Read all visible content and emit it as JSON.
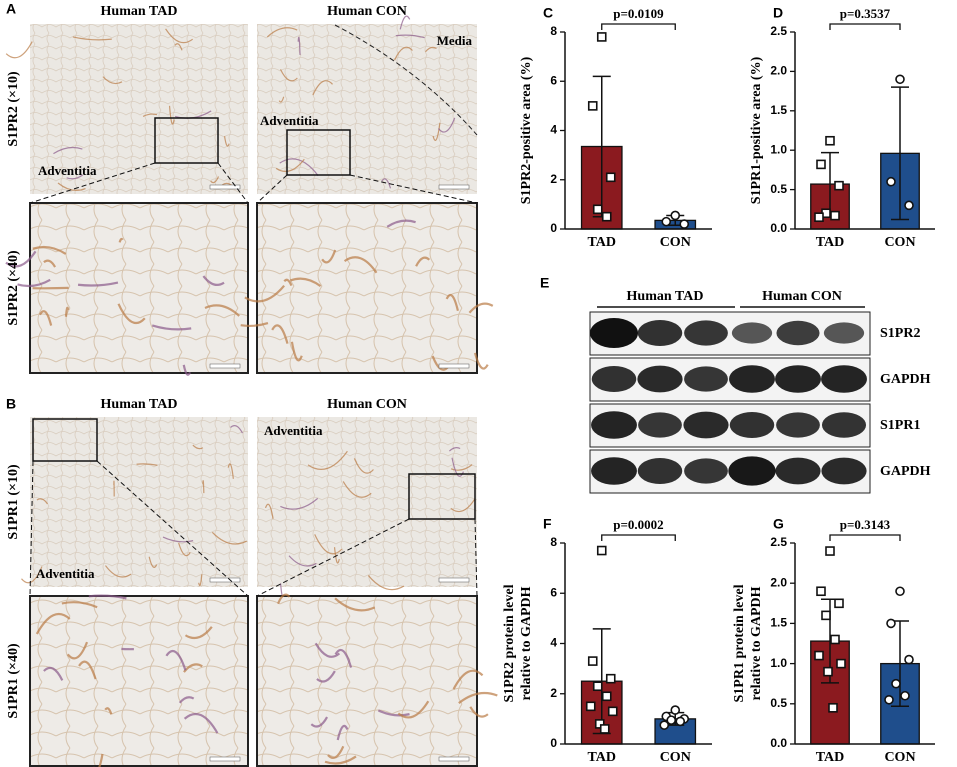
{
  "panels": {
    "a": "A",
    "b": "B",
    "e": "E"
  },
  "micrographs": {
    "a": {
      "columns": [
        "Human TAD",
        "Human CON"
      ],
      "rows": [
        "S1PR2 (×10)",
        "S1PR2 (×40)"
      ],
      "annotations": [
        "Adventitia",
        "Media",
        "Adventitia"
      ]
    },
    "b": {
      "columns": [
        "Human TAD",
        "Human CON"
      ],
      "rows": [
        "S1PR1 (×10)",
        "S1PR1 (×40)"
      ],
      "annotations": [
        "Adventitia",
        "Adventitia"
      ]
    }
  },
  "blot": {
    "groups": [
      "Human TAD",
      "Human CON"
    ],
    "rows": [
      "S1PR2",
      "GAPDH",
      "S1PR1",
      "GAPDH"
    ]
  },
  "chart_data": [
    {
      "type": "bar",
      "label": "C",
      "ylabel": [
        "S1PR2-positive area (%)"
      ],
      "categories": [
        "TAD",
        "CON"
      ],
      "values": [
        3.35,
        0.35
      ],
      "errors": [
        2.85,
        0.2
      ],
      "colors": [
        "#8b1a1f",
        "#1f4e8c"
      ],
      "markers": [
        "square",
        "circle"
      ],
      "points": [
        [
          7.8,
          5.0,
          2.1,
          0.8,
          0.5
        ],
        [
          0.55,
          0.3,
          0.2
        ]
      ],
      "ylim": [
        0,
        8
      ],
      "yticks": [
        0,
        2,
        4,
        6,
        8
      ],
      "annotation": "p=0.0109"
    },
    {
      "type": "bar",
      "label": "D",
      "ylabel": [
        "S1PR1-positive area (%)"
      ],
      "categories": [
        "TAD",
        "CON"
      ],
      "values": [
        0.57,
        0.96
      ],
      "errors": [
        0.4,
        0.84
      ],
      "colors": [
        "#8b1a1f",
        "#1f4e8c"
      ],
      "markers": [
        "square",
        "circle"
      ],
      "points": [
        [
          1.12,
          0.82,
          0.55,
          0.2,
          0.17,
          0.15
        ],
        [
          1.9,
          0.6,
          0.3
        ]
      ],
      "ylim": [
        0,
        2.5
      ],
      "yticks": [
        {
          "value": 0,
          "label": "0.0"
        },
        0.5,
        {
          "value": 1,
          "label": "1.0"
        },
        1.5,
        {
          "value": 2,
          "label": "2.0"
        },
        2.5
      ],
      "annotation": "p=0.3537"
    },
    {
      "type": "bar",
      "label": "F",
      "ylabel": [
        "S1PR2 protein level",
        "relative to GAPDH"
      ],
      "categories": [
        "TAD",
        "CON"
      ],
      "values": [
        2.5,
        1.0
      ],
      "errors": [
        2.08,
        0.25
      ],
      "colors": [
        "#8b1a1f",
        "#1f4e8c"
      ],
      "markers": [
        "square",
        "circle"
      ],
      "points": [
        [
          7.7,
          3.3,
          2.6,
          2.3,
          1.9,
          1.5,
          1.3,
          0.8,
          0.6
        ],
        [
          1.35,
          1.1,
          1.0,
          0.95,
          0.9,
          0.75
        ]
      ],
      "ylim": [
        0,
        8
      ],
      "yticks": [
        0,
        2,
        4,
        6,
        8
      ],
      "annotation": "p=0.0002"
    },
    {
      "type": "bar",
      "label": "G",
      "ylabel": [
        "S1PR1 protein level",
        "relative to GAPDH"
      ],
      "categories": [
        "TAD",
        "CON"
      ],
      "values": [
        1.28,
        1.0
      ],
      "errors": [
        0.52,
        0.53
      ],
      "colors": [
        "#8b1a1f",
        "#1f4e8c"
      ],
      "markers": [
        "square",
        "circle"
      ],
      "points": [
        [
          2.4,
          1.9,
          1.75,
          1.6,
          1.3,
          1.1,
          1.0,
          0.9,
          0.45
        ],
        [
          1.9,
          1.5,
          1.05,
          0.75,
          0.6,
          0.55
        ]
      ],
      "ylim": [
        0,
        2.5
      ],
      "yticks": [
        {
          "value": 0,
          "label": "0.0"
        },
        0.5,
        {
          "value": 1,
          "label": "1.0"
        },
        1.5,
        {
          "value": 2,
          "label": "2.0"
        },
        2.5
      ],
      "annotation": "p=0.3143"
    }
  ]
}
